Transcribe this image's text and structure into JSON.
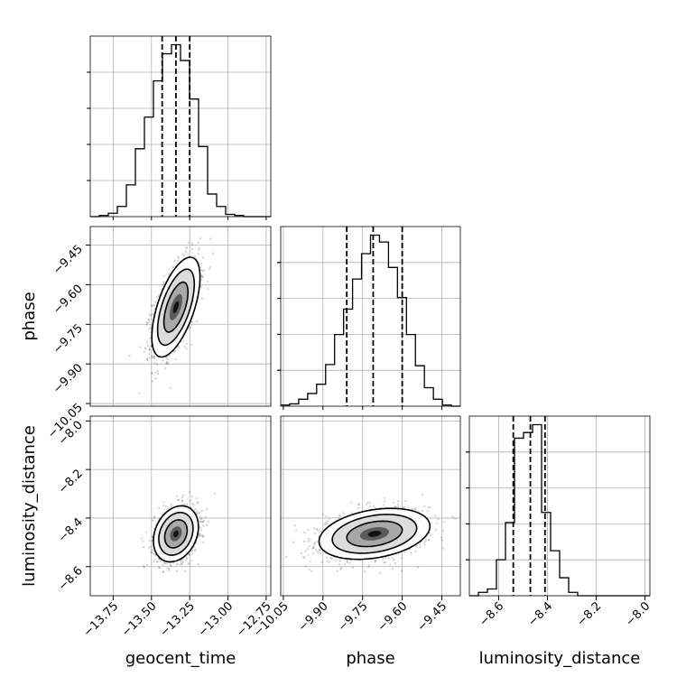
{
  "chart_data": {
    "type": "corner",
    "parameters": [
      "geocent_time",
      "phase",
      "luminosity_distance"
    ],
    "axis_labels": {
      "geocent_time": "geocent_time",
      "phase": "phase",
      "luminosity_distance": "luminosity_distance"
    },
    "ranges": {
      "geocent_time": [
        -13.9,
        -12.72
      ],
      "phase": [
        -10.06,
        -9.38
      ],
      "luminosity_distance": [
        -8.72,
        -7.98
      ]
    },
    "ticks": {
      "geocent_time": [
        -13.75,
        -13.5,
        -13.25,
        -13.0,
        -12.75
      ],
      "phase": [
        -10.05,
        -9.9,
        -9.75,
        -9.6,
        -9.45
      ],
      "luminosity_distance": [
        -8.6,
        -8.4,
        -8.2,
        -8.0
      ]
    },
    "tick_labels": {
      "geocent_time": [
        "−13.75",
        "−13.50",
        "−13.25",
        "−13.00",
        "−12.75"
      ],
      "phase": [
        "−10.05",
        "−9.90",
        "−9.75",
        "−9.60",
        "−9.45"
      ],
      "luminosity_distance": [
        "−8.6",
        "−8.4",
        "−8.2",
        "−8.0"
      ]
    },
    "grid": true,
    "marginals": {
      "geocent_time": {
        "bins": [
          -13.9,
          -13.841,
          -13.782,
          -13.723,
          -13.664,
          -13.605,
          -13.546,
          -13.487,
          -13.428,
          -13.369,
          -13.31,
          -13.251,
          -13.192,
          -13.133,
          -13.074,
          -13.015,
          -12.956,
          -12.897,
          -12.838,
          -12.779,
          -12.72
        ],
        "counts": [
          0,
          1,
          3,
          9,
          28,
          60,
          88,
          120,
          144,
          152,
          138,
          104,
          62,
          20,
          9,
          2,
          1,
          0,
          0,
          0
        ],
        "quantiles": [
          -13.43,
          -13.34,
          -13.25
        ]
      },
      "phase": {
        "bins": [
          -10.06,
          -10.026,
          -9.992,
          -9.958,
          -9.924,
          -9.89,
          -9.856,
          -9.822,
          -9.788,
          -9.754,
          -9.72,
          -9.686,
          -9.652,
          -9.618,
          -9.584,
          -9.55,
          -9.516,
          -9.482,
          -9.448,
          -9.414,
          -9.38
        ],
        "counts": [
          1,
          2,
          6,
          11,
          19,
          36,
          62,
          84,
          110,
          132,
          148,
          142,
          120,
          94,
          62,
          35,
          16,
          6,
          1,
          0
        ],
        "quantiles": [
          -9.81,
          -9.71,
          -9.6
        ]
      },
      "luminosity_distance": {
        "bins": [
          -8.72,
          -8.683,
          -8.646,
          -8.609,
          -8.572,
          -8.535,
          -8.498,
          -8.461,
          -8.424,
          -8.387,
          -8.35,
          -8.313,
          -8.276,
          -8.239,
          -8.202,
          -8.165,
          -8.128,
          -8.091,
          -8.054,
          -8.017,
          -7.98
        ],
        "counts": [
          0,
          3,
          6,
          32,
          65,
          140,
          145,
          152,
          74,
          40,
          16,
          3,
          0,
          0,
          0,
          0,
          0,
          0,
          0,
          0
        ],
        "quantiles": [
          -8.54,
          -8.47,
          -8.41
        ]
      }
    },
    "pairs": [
      {
        "x": "geocent_time",
        "y": "phase",
        "mean": [
          -13.34,
          -9.685
        ],
        "sd": [
          0.075,
          0.09
        ],
        "corr": 0.6
      },
      {
        "x": "geocent_time",
        "y": "luminosity_distance",
        "mean": [
          -13.34,
          -8.465
        ],
        "sd": [
          0.07,
          0.055
        ],
        "corr": 0.25
      },
      {
        "x": "phase",
        "y": "luminosity_distance",
        "mean": [
          -9.705,
          -8.465
        ],
        "sd": [
          0.1,
          0.05
        ],
        "corr": 0.3
      }
    ]
  }
}
